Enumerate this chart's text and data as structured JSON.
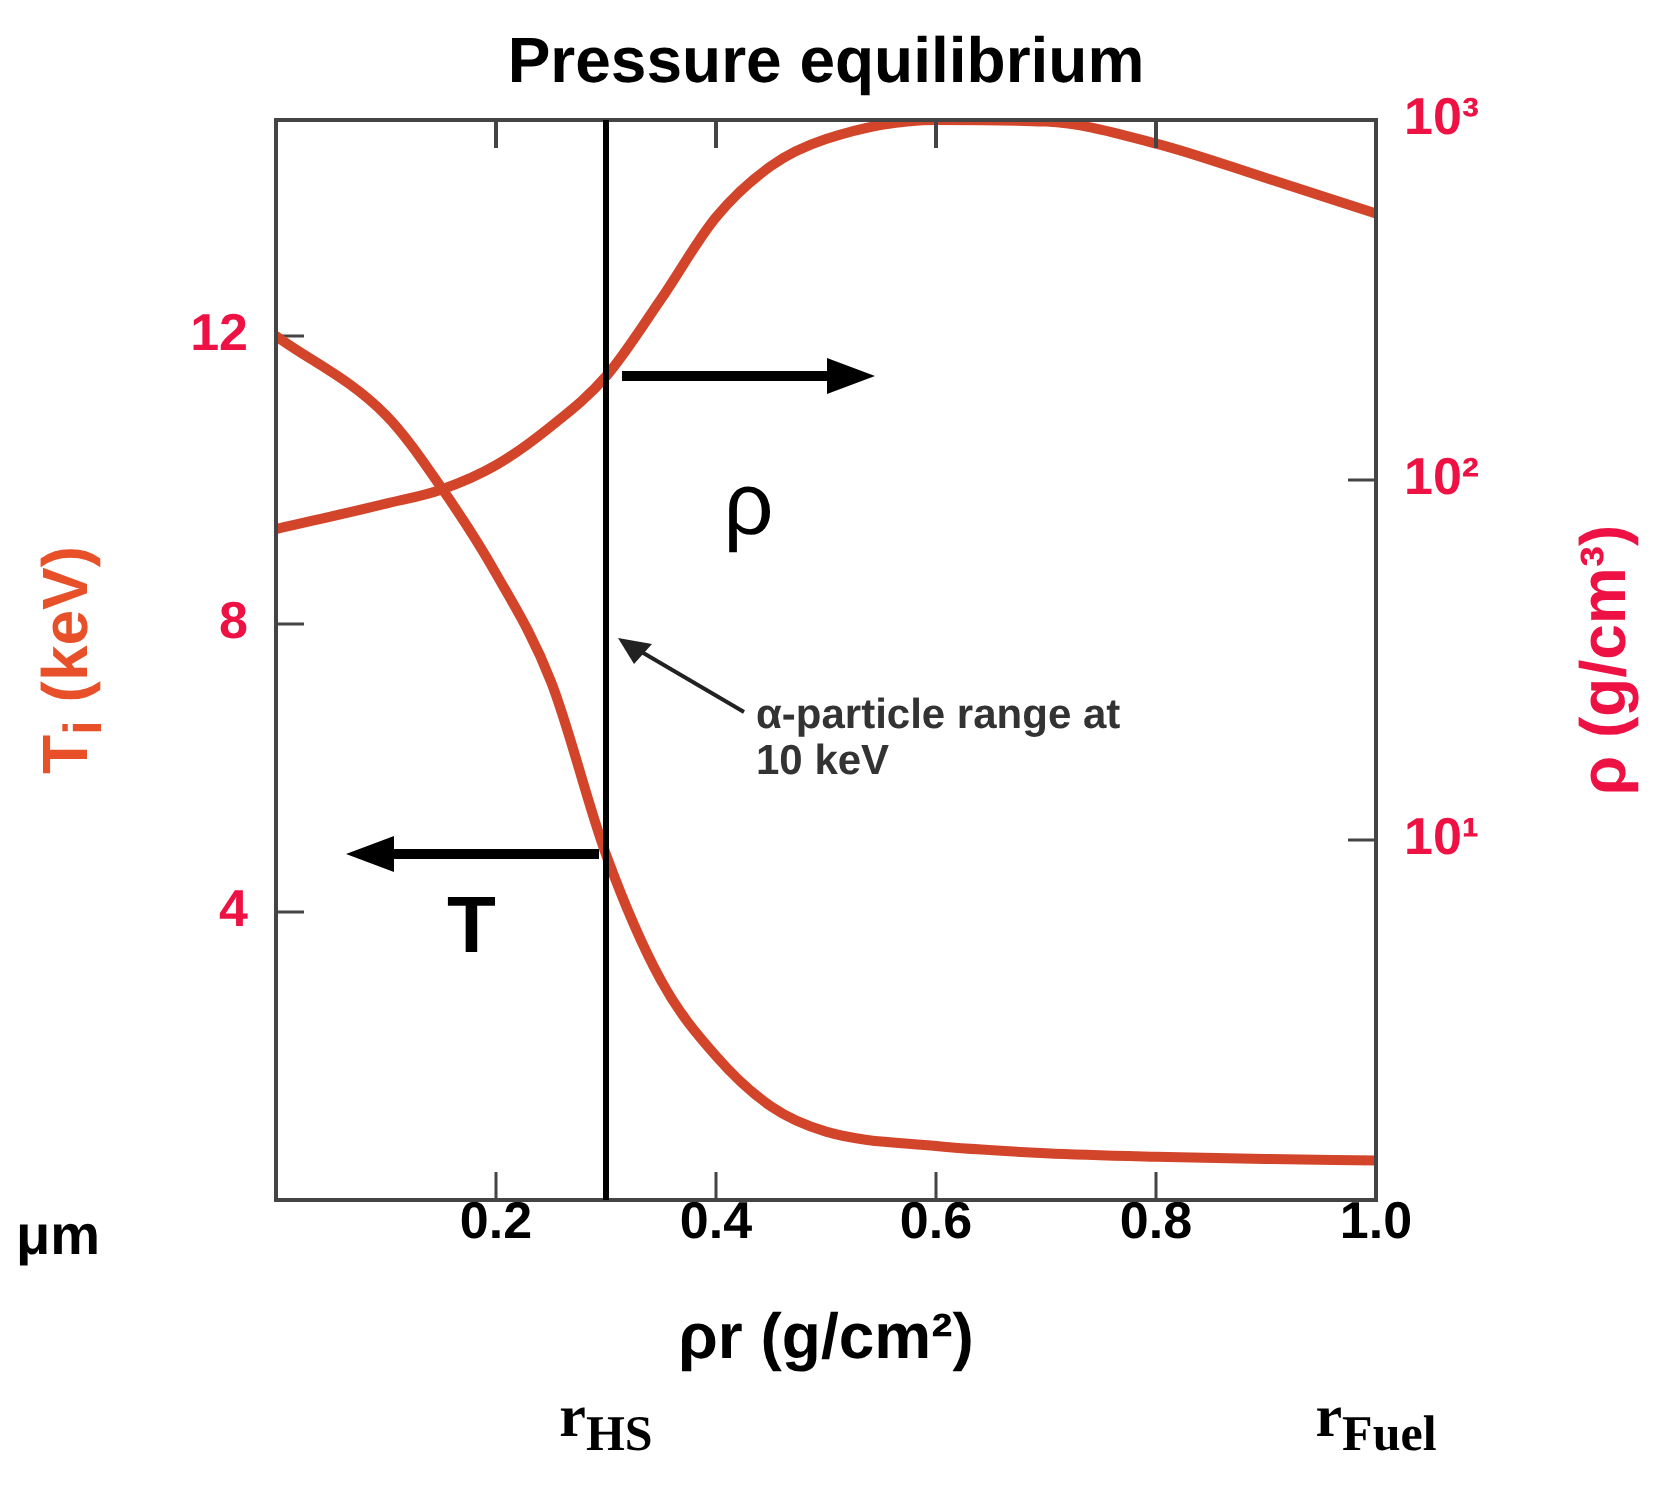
{
  "chart_data": {
    "type": "line",
    "title": "Pressure equilibrium",
    "xlabel": "ρr (g/cm²)",
    "ylabel": "T$_{i}$ (keV)",
    "y2label": "ρ (g/cm³)",
    "x": [
      0,
      0.1,
      0.15,
      0.2,
      0.25,
      0.3,
      0.35,
      0.4,
      0.45,
      0.5,
      0.6,
      0.7,
      0.8,
      0.9,
      1.0
    ],
    "series": [
      {
        "name": "T",
        "color": "#d2452b",
        "values": [
          12.0,
          10.9,
          9.9,
          8.7,
          7.2,
          4.8,
          3.05,
          2.0,
          1.3,
          0.95,
          0.75,
          0.65,
          0.6,
          0.57,
          0.55
        ]
      },
      {
        "name": "ρ",
        "color": "#d2452b",
        "axis": "y2",
        "values": [
          73,
          86,
          94,
          110,
          141,
          194,
          318,
          537,
          745,
          885,
          1000,
          990,
          860,
          690,
          550
        ]
      }
    ],
    "xlim": [
      0,
      1.0
    ],
    "xticks": [
      0.2,
      0.4,
      0.6,
      0.8,
      {
        "value": 1.0,
        "label": "1.0"
      }
    ],
    "ylim": [
      0,
      15
    ],
    "yticks": [
      4,
      8,
      12
    ],
    "y2lim": [
      1,
      1000
    ],
    "y2ticks": [
      {
        "value": 10,
        "label": "10¹"
      },
      {
        "value": 100,
        "label": "10²"
      },
      {
        "value": 1000,
        "label": "10³"
      }
    ],
    "log": "y2",
    "grid": false,
    "legend": false,
    "marker": "none",
    "line_style": "solid",
    "ref_lines": [
      {
        "axis": "x",
        "value": 0.3,
        "color": "#000000"
      }
    ],
    "annotations": [
      "α-particle range at 10 keV",
      "r$_{HS}$",
      "r$_{Fuel}$",
      "μm"
    ]
  }
}
